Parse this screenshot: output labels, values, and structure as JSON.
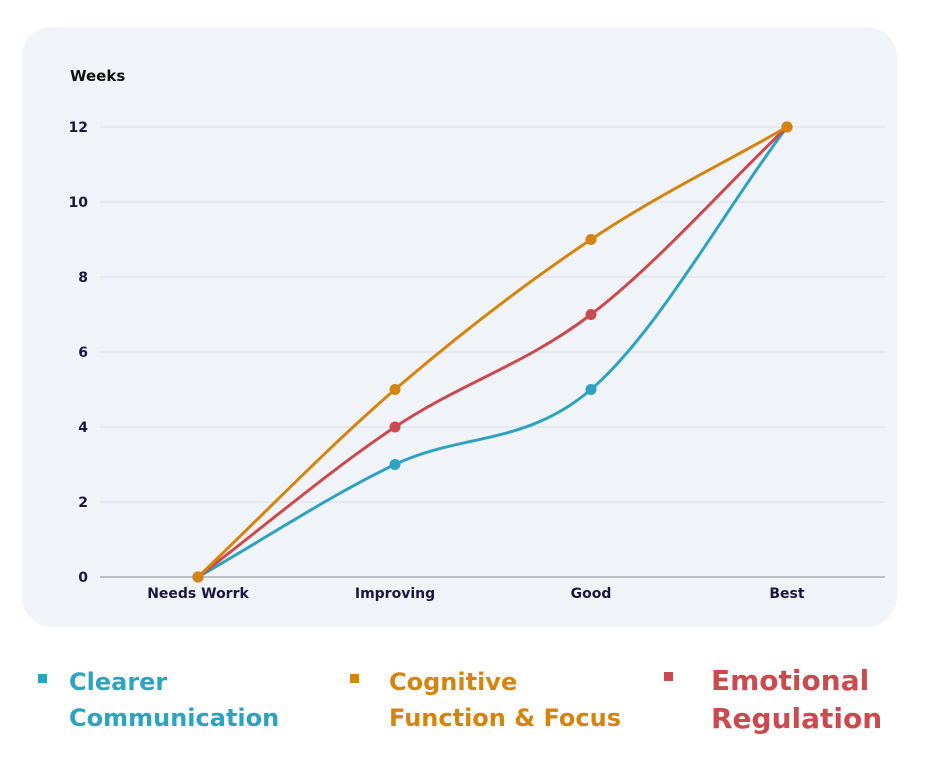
{
  "chart_data": {
    "type": "line",
    "ylabel": "Weeks",
    "categories": [
      "Needs Worrk",
      "Improving",
      "Good",
      "Best"
    ],
    "ylim": [
      0,
      12
    ],
    "yticks": [
      0,
      2,
      4,
      6,
      8,
      10,
      12
    ],
    "grid": true,
    "smooth": true,
    "legend_position": "bottom",
    "series": [
      {
        "name": "Clearer Communication",
        "color": "#2ea3c0",
        "values": [
          0,
          3,
          5,
          12
        ]
      },
      {
        "name": "Emotional Regulation",
        "color": "#c94a4f",
        "values": [
          0,
          4,
          7,
          12
        ]
      },
      {
        "name": "Cognitive Function & Focus",
        "color": "#d4850f",
        "values": [
          0,
          5,
          9,
          12
        ]
      }
    ]
  },
  "legend": [
    {
      "line1": "Clearer",
      "line2": "Communication",
      "color": "#2ea3c0"
    },
    {
      "line1": "Cognitive",
      "line2": "Function & Focus",
      "color": "#d4850f"
    },
    {
      "line1": "Emotional",
      "line2": "Regulation",
      "color": "#c94a4f"
    }
  ]
}
